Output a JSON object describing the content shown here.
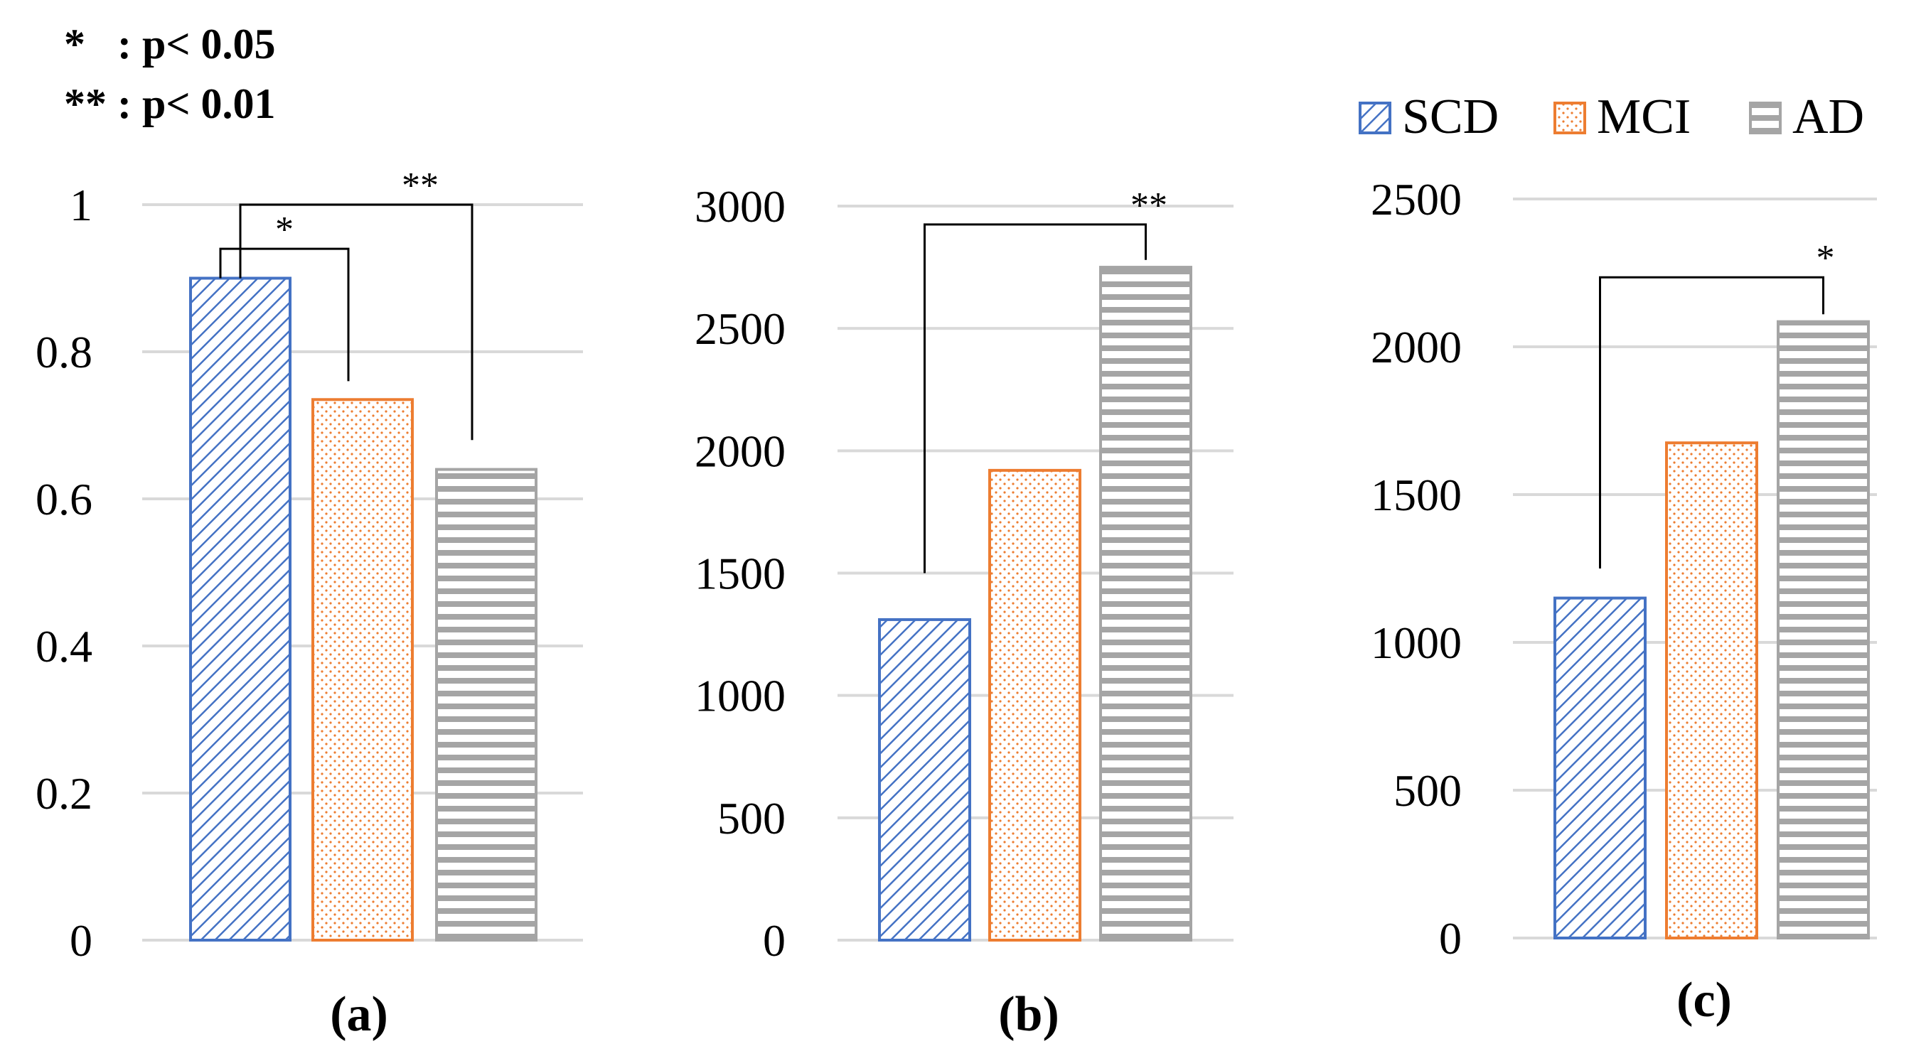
{
  "notes": [
    "*   : p< 0.05",
    "** : p< 0.01"
  ],
  "legend": [
    {
      "name": "SCD",
      "color": "#4472c4",
      "pattern": "diagonal"
    },
    {
      "name": "MCI",
      "color": "#ed7d31",
      "pattern": "dots"
    },
    {
      "name": "AD",
      "color": "#a5a5a5",
      "pattern": "horizontal"
    }
  ],
  "chart_data": [
    {
      "type": "bar",
      "label": "(a)",
      "categories": [
        "SCD",
        "MCI",
        "AD"
      ],
      "values": [
        0.9,
        0.735,
        0.64
      ],
      "ylim": [
        0,
        1
      ],
      "yticks": [
        0,
        0.2,
        0.4,
        0.6,
        0.8,
        1
      ],
      "ytick_labels": [
        "0",
        "0.2",
        "0.4",
        "0.6",
        "0.8",
        "1"
      ],
      "significance": [
        {
          "from": 0,
          "to": 1,
          "text": "*",
          "level": 0.94,
          "drop_from": 0.9,
          "drop_to": 0.76
        },
        {
          "from": 0,
          "to": 2,
          "text": "**",
          "level": 1.0,
          "drop_from": 0.9,
          "drop_to": 0.68
        }
      ]
    },
    {
      "type": "bar",
      "label": "(b)",
      "categories": [
        "SCD",
        "MCI",
        "AD"
      ],
      "values": [
        1310,
        1920,
        2750
      ],
      "ylim": [
        0,
        3000
      ],
      "yticks": [
        0,
        500,
        1000,
        1500,
        2000,
        2500,
        3000
      ],
      "ytick_labels": [
        "0",
        "500",
        "1000",
        "1500",
        "2000",
        "2500",
        "3000"
      ],
      "significance": [
        {
          "from": 0,
          "to": 2,
          "text": "**",
          "level": 2925,
          "drop_from": 1500,
          "drop_to": 2780
        }
      ]
    },
    {
      "type": "bar",
      "label": "(c)",
      "categories": [
        "SCD",
        "MCI",
        "AD"
      ],
      "values": [
        1150,
        1675,
        2085
      ],
      "ylim": [
        0,
        2500
      ],
      "yticks": [
        0,
        500,
        1000,
        1500,
        2000,
        2500
      ],
      "ytick_labels": [
        "0",
        "500",
        "1000",
        "1500",
        "2000",
        "2500"
      ],
      "significance": [
        {
          "from": 0,
          "to": 2,
          "text": "*",
          "level": 2235,
          "drop_from": 1250,
          "drop_to": 2110
        }
      ]
    }
  ]
}
